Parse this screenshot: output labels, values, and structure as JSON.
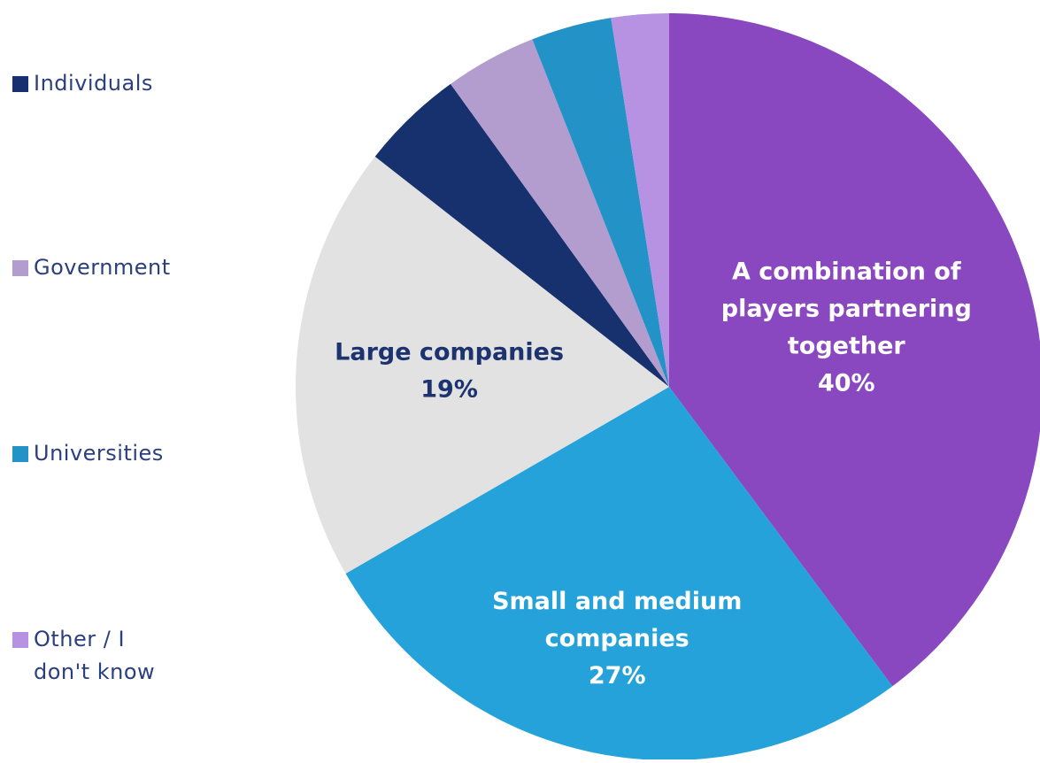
{
  "chart_data": {
    "type": "pie",
    "start_angle_deg": 0,
    "direction": "clockwise",
    "slices": [
      {
        "label": "A combination of\nplayers partnering\ntogether",
        "value": 40,
        "value_label": "40%",
        "color": "#8a48c0",
        "label_color": "#ffffff"
      },
      {
        "label": "Small and medium\ncompanies",
        "value": 27,
        "value_label": "27%",
        "color": "#25a2d9",
        "label_color": "#ffffff"
      },
      {
        "label": "Large companies",
        "value": 19,
        "value_label": "19%",
        "color": "#e2e2e2",
        "label_color": "#1c3370"
      },
      {
        "label": "Individuals",
        "value": 4.5,
        "value_label": "",
        "color": "#17306e",
        "label_color": "#ffffff"
      },
      {
        "label": "Government",
        "value": 4,
        "value_label": "",
        "color": "#b39dcf",
        "label_color": "#ffffff"
      },
      {
        "label": "Universities",
        "value": 3.5,
        "value_label": "",
        "color": "#2292c7",
        "label_color": "#ffffff"
      },
      {
        "label": "Other / I\ndon't know",
        "value": 2.5,
        "value_label": "",
        "color": "#b892e2",
        "label_color": "#ffffff"
      }
    ],
    "legend": {
      "placement": "left",
      "items": [
        {
          "label": "Individuals",
          "color": "#17306e"
        },
        {
          "label": "Government",
          "color": "#b39dcf"
        },
        {
          "label": "Universities",
          "color": "#2292c7"
        },
        {
          "label": "Other / I\ndon't know",
          "color": "#b892e2"
        }
      ]
    }
  }
}
